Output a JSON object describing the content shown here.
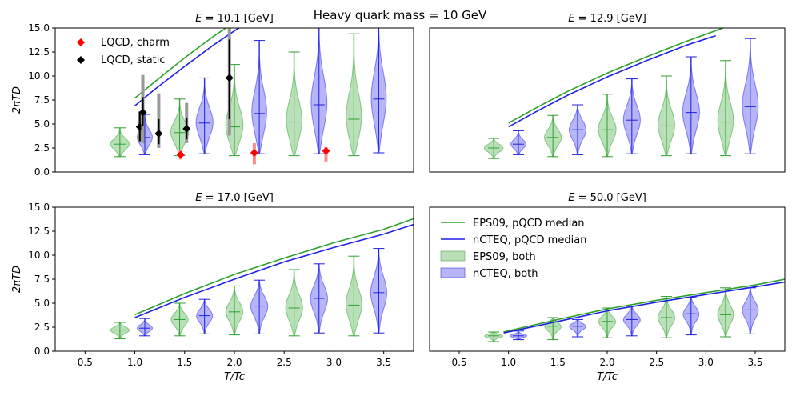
{
  "figure": {
    "suptitle": "Heavy quark mass = 10 GeV"
  },
  "colors": {
    "eps09": "#2ca02c",
    "ncteq": "#1f1fe6",
    "charm": "#ff0000",
    "static": "#000000"
  },
  "legend_top": {
    "charm": "LQCD, charm",
    "static": "LQCD, static"
  },
  "legend_bottom": {
    "eps09_line": "EPS09, pQCD median",
    "ncteq_line": "nCTEQ, pQCD median",
    "eps09_violin": "EPS09, both",
    "ncteq_violin": "nCTEQ, both"
  },
  "chart_data": [
    {
      "type": "violin",
      "title": "E = 10.1 [GeV]",
      "title_prefix": "E",
      "title_value": " = 10.1 [GeV]",
      "ylabel": "2πTD",
      "xlabel": "",
      "xlim": [
        0.2,
        3.8
      ],
      "ylim": [
        0,
        15
      ],
      "yticks": [
        "0.0",
        "2.5",
        "5.0",
        "7.5",
        "10.0",
        "12.5",
        "15.0"
      ],
      "xticks": [],
      "lines": {
        "eps09": {
          "x": [
            1.0,
            1.2,
            1.5,
            1.8,
            2.0,
            2.1
          ],
          "y": [
            7.7,
            9.4,
            11.9,
            14.2,
            15.6,
            16.2
          ]
        },
        "ncteq": {
          "x": [
            1.0,
            1.2,
            1.5,
            1.8,
            2.0,
            2.2
          ],
          "y": [
            6.9,
            8.6,
            11.0,
            13.3,
            14.7,
            16.0
          ]
        }
      },
      "violins": [
        {
          "series": "eps09",
          "x": 0.85,
          "min": 1.6,
          "median": 2.9,
          "max": 4.6,
          "width": 0.2
        },
        {
          "series": "ncteq",
          "x": 1.1,
          "min": 1.8,
          "median": 3.6,
          "max": 6.0,
          "width": 0.16
        },
        {
          "series": "eps09",
          "x": 1.45,
          "min": 1.7,
          "median": 4.1,
          "max": 7.6,
          "width": 0.19
        },
        {
          "series": "ncteq",
          "x": 1.7,
          "min": 1.9,
          "median": 5.1,
          "max": 9.8,
          "width": 0.18
        },
        {
          "series": "eps09",
          "x": 2.0,
          "min": 1.7,
          "median": 4.7,
          "max": 11.2,
          "width": 0.19
        },
        {
          "series": "ncteq",
          "x": 2.25,
          "min": 1.9,
          "median": 6.1,
          "max": 13.7,
          "width": 0.16
        },
        {
          "series": "eps09",
          "x": 2.6,
          "min": 1.7,
          "median": 5.2,
          "max": 12.5,
          "width": 0.17
        },
        {
          "series": "ncteq",
          "x": 2.85,
          "min": 1.9,
          "median": 7.0,
          "max": 16.0,
          "width": 0.17
        },
        {
          "series": "eps09",
          "x": 3.2,
          "min": 1.7,
          "median": 5.5,
          "max": 14.4,
          "width": 0.17
        },
        {
          "series": "ncteq",
          "x": 3.45,
          "min": 2.0,
          "median": 7.6,
          "max": 16.0,
          "width": 0.16
        }
      ],
      "lqcd": [
        {
          "series": "charm",
          "x": 1.46,
          "y": 1.8,
          "lo": 1.3,
          "hi": 2.3
        },
        {
          "series": "charm",
          "x": 2.2,
          "y": 2.0,
          "lo": 0.8,
          "hi": 3.0
        },
        {
          "series": "charm",
          "x": 2.92,
          "y": 2.2,
          "lo": 1.1,
          "hi": 2.6
        },
        {
          "series": "static",
          "x": 1.05,
          "y": 4.7,
          "lo": 3.2,
          "hi": 6.3,
          "sys_lo": 3.2,
          "sys_hi": 6.3
        },
        {
          "series": "static",
          "x": 1.08,
          "y": 6.2,
          "lo": 4.8,
          "hi": 7.8,
          "sys_lo": 3.0,
          "sys_hi": 10.1
        },
        {
          "series": "static",
          "x": 1.24,
          "y": 4.0,
          "lo": 2.9,
          "hi": 5.5,
          "sys_lo": 2.5,
          "sys_hi": 8.2
        },
        {
          "series": "static",
          "x": 1.52,
          "y": 4.5,
          "lo": 3.4,
          "hi": 5.6,
          "sys_lo": 3.0,
          "sys_hi": 7.2
        },
        {
          "series": "static",
          "x": 1.95,
          "y": 9.8,
          "lo": 5.5,
          "hi": 13.8,
          "sys_lo": 3.8,
          "sys_hi": 15.0
        }
      ]
    },
    {
      "type": "violin",
      "title": "E = 12.9 [GeV]",
      "title_prefix": "E",
      "title_value": " = 12.9 [GeV]",
      "ylabel": "",
      "xlabel": "",
      "xlim": [
        0.2,
        3.8
      ],
      "ylim": [
        0,
        15
      ],
      "yticks": [],
      "xticks": [],
      "lines": {
        "eps09": {
          "x": [
            1.0,
            1.3,
            1.6,
            2.0,
            2.4,
            2.8,
            3.2
          ],
          "y": [
            5.1,
            6.8,
            8.4,
            10.3,
            12.0,
            13.6,
            15.1
          ]
        },
        "ncteq": {
          "x": [
            1.0,
            1.3,
            1.6,
            2.0,
            2.4,
            2.8,
            3.1
          ],
          "y": [
            4.7,
            6.4,
            8.0,
            9.9,
            11.6,
            13.2,
            14.2
          ]
        }
      },
      "violins": [
        {
          "series": "eps09",
          "x": 0.85,
          "min": 1.4,
          "median": 2.5,
          "max": 3.5,
          "width": 0.2
        },
        {
          "series": "ncteq",
          "x": 1.1,
          "min": 1.8,
          "median": 2.9,
          "max": 4.3,
          "width": 0.16
        },
        {
          "series": "eps09",
          "x": 1.45,
          "min": 1.6,
          "median": 3.6,
          "max": 5.9,
          "width": 0.18
        },
        {
          "series": "ncteq",
          "x": 1.7,
          "min": 1.8,
          "median": 4.4,
          "max": 7.0,
          "width": 0.18
        },
        {
          "series": "eps09",
          "x": 2.0,
          "min": 1.6,
          "median": 4.4,
          "max": 8.1,
          "width": 0.19
        },
        {
          "series": "ncteq",
          "x": 2.25,
          "min": 1.9,
          "median": 5.4,
          "max": 9.7,
          "width": 0.18
        },
        {
          "series": "eps09",
          "x": 2.6,
          "min": 1.7,
          "median": 4.8,
          "max": 10.0,
          "width": 0.18
        },
        {
          "series": "ncteq",
          "x": 2.85,
          "min": 1.9,
          "median": 6.2,
          "max": 12.0,
          "width": 0.18
        },
        {
          "series": "eps09",
          "x": 3.2,
          "min": 1.7,
          "median": 5.2,
          "max": 11.6,
          "width": 0.17
        },
        {
          "series": "ncteq",
          "x": 3.45,
          "min": 1.9,
          "median": 6.8,
          "max": 13.9,
          "width": 0.17
        }
      ],
      "lqcd": []
    },
    {
      "type": "violin",
      "title": "E = 17.0 [GeV]",
      "title_prefix": "E",
      "title_value": " = 17.0 [GeV]",
      "ylabel": "2πTD",
      "xlabel": "T/Tc",
      "xlim": [
        0.2,
        3.8
      ],
      "ylim": [
        0,
        15
      ],
      "yticks": [
        "0.0",
        "2.5",
        "5.0",
        "7.5",
        "10.0",
        "12.5",
        "15.0"
      ],
      "xticks": [
        "0.5",
        "1.0",
        "1.5",
        "2.0",
        "2.5",
        "3.0",
        "3.5"
      ],
      "lines": {
        "eps09": {
          "x": [
            1.0,
            1.5,
            2.0,
            2.5,
            3.0,
            3.5,
            3.8
          ],
          "y": [
            3.8,
            6.0,
            8.0,
            9.7,
            11.3,
            12.7,
            13.8
          ]
        },
        "ncteq": {
          "x": [
            1.0,
            1.5,
            2.0,
            2.5,
            3.0,
            3.5,
            3.8
          ],
          "y": [
            3.5,
            5.6,
            7.5,
            9.3,
            10.8,
            12.2,
            13.2
          ]
        }
      },
      "violins": [
        {
          "series": "eps09",
          "x": 0.85,
          "min": 1.3,
          "median": 2.2,
          "max": 3.0,
          "width": 0.2
        },
        {
          "series": "ncteq",
          "x": 1.1,
          "min": 1.6,
          "median": 2.4,
          "max": 3.4,
          "width": 0.16
        },
        {
          "series": "eps09",
          "x": 1.45,
          "min": 1.6,
          "median": 3.3,
          "max": 5.0,
          "width": 0.18
        },
        {
          "series": "ncteq",
          "x": 1.7,
          "min": 1.8,
          "median": 3.7,
          "max": 5.4,
          "width": 0.17
        },
        {
          "series": "eps09",
          "x": 2.0,
          "min": 1.7,
          "median": 4.1,
          "max": 6.8,
          "width": 0.18
        },
        {
          "series": "ncteq",
          "x": 2.25,
          "min": 1.8,
          "median": 4.7,
          "max": 7.4,
          "width": 0.18
        },
        {
          "series": "eps09",
          "x": 2.6,
          "min": 1.6,
          "median": 4.5,
          "max": 8.5,
          "width": 0.18
        },
        {
          "series": "ncteq",
          "x": 2.85,
          "min": 1.9,
          "median": 5.5,
          "max": 9.1,
          "width": 0.18
        },
        {
          "series": "eps09",
          "x": 3.2,
          "min": 1.6,
          "median": 4.8,
          "max": 9.9,
          "width": 0.17
        },
        {
          "series": "ncteq",
          "x": 3.45,
          "min": 1.9,
          "median": 6.1,
          "max": 10.7,
          "width": 0.17
        }
      ],
      "lqcd": []
    },
    {
      "type": "violin",
      "title": "E = 50.0 [GeV]",
      "title_prefix": "E",
      "title_value": " = 50.0 [GeV]",
      "ylabel": "",
      "xlabel": "T/Tc",
      "xlim": [
        0.2,
        3.8
      ],
      "ylim": [
        0,
        15
      ],
      "yticks": [],
      "xticks": [
        "0.5",
        "1.0",
        "1.5",
        "2.0",
        "2.5",
        "3.0",
        "3.5"
      ],
      "lines": {
        "eps09": {
          "x": [
            0.95,
            1.5,
            2.0,
            2.5,
            3.0,
            3.5,
            3.8
          ],
          "y": [
            2.0,
            3.3,
            4.4,
            5.3,
            6.1,
            6.9,
            7.5
          ]
        },
        "ncteq": {
          "x": [
            0.95,
            1.5,
            2.0,
            2.5,
            3.0,
            3.5,
            3.8
          ],
          "y": [
            1.9,
            3.1,
            4.2,
            5.1,
            5.9,
            6.7,
            7.2
          ]
        }
      },
      "violins": [
        {
          "series": "eps09",
          "x": 0.85,
          "min": 1.0,
          "median": 1.6,
          "max": 2.0,
          "width": 0.2
        },
        {
          "series": "ncteq",
          "x": 1.1,
          "min": 1.2,
          "median": 1.6,
          "max": 2.1,
          "width": 0.18
        },
        {
          "series": "eps09",
          "x": 1.45,
          "min": 1.2,
          "median": 2.6,
          "max": 3.5,
          "width": 0.18
        },
        {
          "series": "ncteq",
          "x": 1.7,
          "min": 1.5,
          "median": 2.6,
          "max": 3.3,
          "width": 0.18
        },
        {
          "series": "eps09",
          "x": 2.0,
          "min": 1.4,
          "median": 3.1,
          "max": 4.5,
          "width": 0.18
        },
        {
          "series": "ncteq",
          "x": 2.25,
          "min": 1.6,
          "median": 3.3,
          "max": 4.7,
          "width": 0.18
        },
        {
          "series": "eps09",
          "x": 2.6,
          "min": 1.4,
          "median": 3.5,
          "max": 5.7,
          "width": 0.18
        },
        {
          "series": "ncteq",
          "x": 2.85,
          "min": 1.7,
          "median": 3.9,
          "max": 5.6,
          "width": 0.17
        },
        {
          "series": "eps09",
          "x": 3.2,
          "min": 1.5,
          "median": 3.8,
          "max": 6.6,
          "width": 0.17
        },
        {
          "series": "ncteq",
          "x": 3.45,
          "min": 1.8,
          "median": 4.3,
          "max": 6.6,
          "width": 0.17
        }
      ],
      "lqcd": []
    }
  ]
}
